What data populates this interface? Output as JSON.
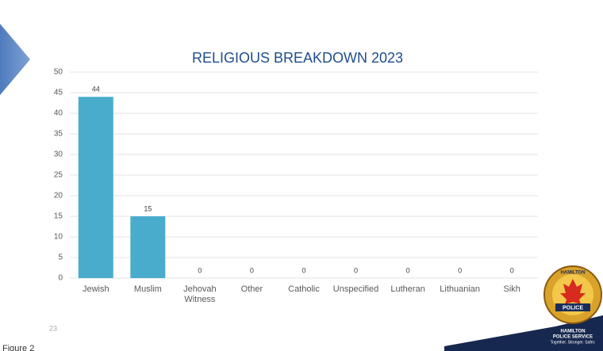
{
  "chart_data": {
    "type": "bar",
    "title": "RELIGIOUS BREAKDOWN 2023",
    "categories": [
      "Jewish",
      "Muslim",
      "Jehovah Witness",
      "Other",
      "Catholic",
      "Unspecified",
      "Lutheran",
      "Lithuanian",
      "Sikh"
    ],
    "values": [
      44,
      15,
      0,
      0,
      0,
      0,
      0,
      0,
      0
    ],
    "color": "#4aaccd",
    "ylim": [
      0,
      50
    ],
    "yticks": [
      0,
      5,
      10,
      15,
      20,
      25,
      30,
      35,
      40,
      45,
      50
    ],
    "grid": true
  },
  "slide_number": "23",
  "caption": "Figure 2",
  "logo": {
    "badge_top": "HAMILTON",
    "badge_banner": "POLICE",
    "name_line1": "HAMILTON",
    "name_line2": "POLICE SERVICE",
    "motto": "Together. Stronger. Safer."
  }
}
